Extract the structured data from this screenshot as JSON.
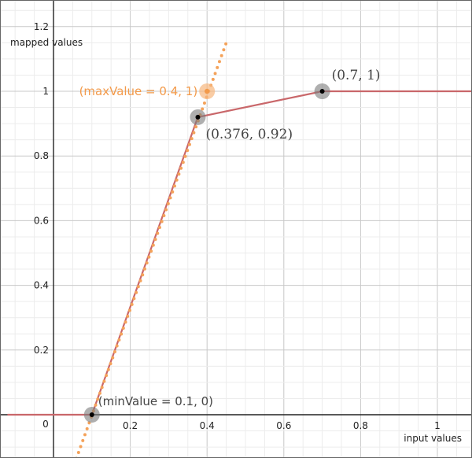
{
  "chart_data": {
    "type": "line",
    "xlabel": "input values",
    "ylabel": "mapped values",
    "xlim": [
      -0.12,
      1.1
    ],
    "ylim": [
      -0.13,
      1.28
    ],
    "grid": true,
    "x_ticks": [
      0.2,
      0.4,
      0.6,
      0.8,
      1
    ],
    "x_tick_labels": [
      "0.2",
      "0.4",
      "0.6",
      "0.8",
      "1"
    ],
    "y_ticks": [
      0.2,
      0.4,
      0.6,
      0.8,
      1,
      1.2
    ],
    "y_tick_labels": [
      "0.2",
      "0.4",
      "0.6",
      "0.8",
      "1",
      "1.2"
    ],
    "origin_label": "0",
    "series": [
      {
        "style": "solid",
        "color": "#c9676a",
        "x": [
          -0.12,
          0.1,
          0.376,
          0.7,
          1.1
        ],
        "y": [
          0,
          0,
          0.92,
          1,
          1
        ]
      },
      {
        "style": "dotted",
        "color": "#f4a25a",
        "x": [
          0.043,
          0.45
        ],
        "y": [
          -0.19,
          1.15
        ]
      }
    ],
    "points": [
      {
        "x": 0.1,
        "y": 0,
        "label": "(minValue = 0.1, 0)",
        "style": "gray",
        "label_pos": "top-right"
      },
      {
        "x": 0.376,
        "y": 0.92,
        "label": "(0.376, 0.92)",
        "style": "gray",
        "label_pos": "bottom-right"
      },
      {
        "x": 0.7,
        "y": 1,
        "label": "(0.7, 1)",
        "style": "gray",
        "label_pos": "top-right"
      },
      {
        "x": 0.4,
        "y": 1,
        "label": "(maxValue = 0.4, 1)",
        "style": "orange",
        "label_pos": "left"
      }
    ]
  },
  "colors": {
    "grid_minor": "#ececec",
    "grid_major": "#c8c8c8",
    "axis": "#222222",
    "point_halo_gray": "#7a7a7a",
    "point_halo_orange": "#f7b77e",
    "orange_text": "#f39a4a",
    "gray_text": "#444444"
  }
}
